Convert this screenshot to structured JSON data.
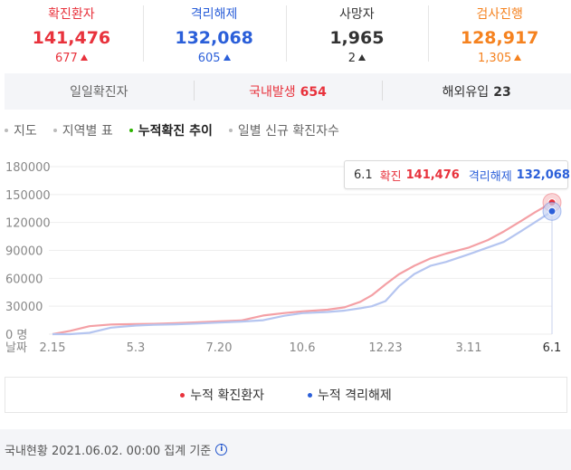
{
  "stats": [
    {
      "label": "확진환자",
      "value": "141,476",
      "delta": "677",
      "color": "#e8323c"
    },
    {
      "label": "격리해제",
      "value": "132,068",
      "delta": "605",
      "color": "#2b5fd9"
    },
    {
      "label": "사망자",
      "value": "1,965",
      "delta": "2",
      "color": "#333333"
    },
    {
      "label": "검사진행",
      "value": "128,917",
      "delta": "1,305",
      "color": "#f5821f"
    }
  ],
  "daily": [
    {
      "label": "일일확진자",
      "value": "",
      "color": "#666666"
    },
    {
      "label": "국내발생",
      "value": "654",
      "color": "#e8323c"
    },
    {
      "label": "해외유입",
      "value": "23",
      "color": "#333333"
    }
  ],
  "tabs": [
    {
      "label": "지도",
      "active": false
    },
    {
      "label": "지역별 표",
      "active": false
    },
    {
      "label": "누적확진 추이",
      "active": true
    },
    {
      "label": "일별 신규 확진자수",
      "active": false
    }
  ],
  "tooltip": {
    "date": "6.1",
    "confirmed_label": "확진",
    "confirmed_value": "141,476",
    "released_label": "격리해제",
    "released_value": "132,068"
  },
  "legend": [
    {
      "label": "누적 확진환자",
      "color": "#e8323c"
    },
    {
      "label": "누적 격리해제",
      "color": "#2b5fd9"
    }
  ],
  "footer": {
    "text": "국내현황 2021.06.02. 00:00 집계 기준",
    "icon": "info-icon"
  },
  "chart_data": {
    "type": "area",
    "x_ticks": [
      "2.15",
      "5.3",
      "7.20",
      "10.6",
      "12.23",
      "3.11",
      "6.1"
    ],
    "xlabel": "날짜",
    "y_ticks": [
      "180000",
      "150000",
      "120000",
      "90000",
      "60000",
      "30000",
      "0 명"
    ],
    "ylim": [
      0,
      180000
    ],
    "grid": true,
    "series": [
      {
        "name": "누적 확진환자",
        "color": "#f4a0a5",
        "x": [
          "2.15",
          "3.1",
          "3.20",
          "4.10",
          "5.3",
          "5.20",
          "6.10",
          "7.1",
          "7.20",
          "8.10",
          "8.31",
          "9.20",
          "10.6",
          "10.30",
          "11.15",
          "11.30",
          "12.10",
          "12.23",
          "1.5",
          "1.20",
          "2.5",
          "2.20",
          "3.11",
          "3.30",
          "4.15",
          "5.1",
          "5.15",
          "6.1"
        ],
        "y": [
          0,
          3500,
          8600,
          10400,
          10800,
          11100,
          11900,
          12800,
          13700,
          14700,
          20000,
          22700,
          24500,
          26300,
          28800,
          34700,
          41700,
          53500,
          64300,
          73500,
          81400,
          86600,
          93000,
          101100,
          110300,
          121400,
          131000,
          141476
        ]
      },
      {
        "name": "누적 격리해제",
        "color": "#b5c5f0",
        "x": [
          "2.15",
          "3.1",
          "3.20",
          "4.10",
          "5.3",
          "5.20",
          "6.10",
          "7.1",
          "7.20",
          "8.10",
          "8.31",
          "9.20",
          "10.6",
          "10.30",
          "11.15",
          "11.30",
          "12.10",
          "12.23",
          "1.5",
          "1.20",
          "2.5",
          "2.20",
          "3.11",
          "3.30",
          "4.15",
          "5.1",
          "5.15",
          "6.1"
        ],
        "y": [
          0,
          30,
          1500,
          7000,
          9200,
          10000,
          10600,
          11500,
          12500,
          13500,
          15000,
          19800,
          22600,
          23800,
          25300,
          27800,
          30000,
          35500,
          51400,
          64600,
          73600,
          77600,
          85800,
          93100,
          99100,
          110500,
          120300,
          132068
        ]
      }
    ]
  }
}
